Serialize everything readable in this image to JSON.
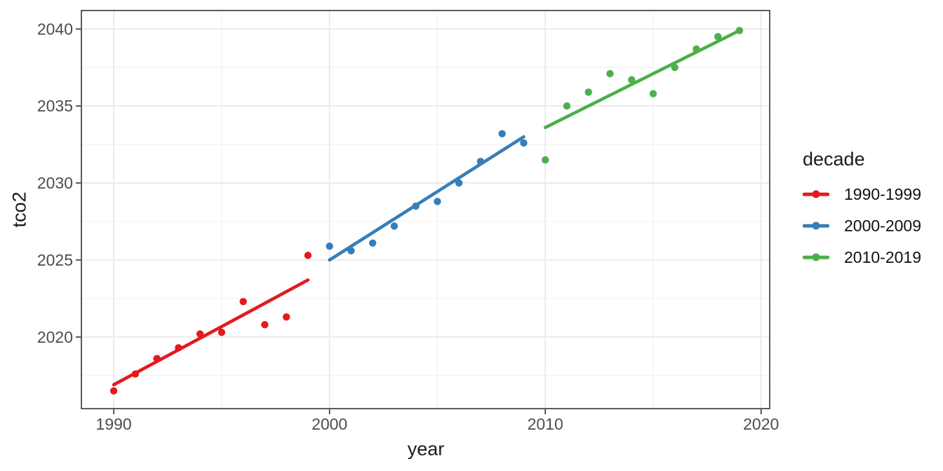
{
  "chart_data": {
    "type": "scatter",
    "xlabel": "year",
    "ylabel": "tco2",
    "legend_title": "decade",
    "legend_position": "right",
    "grid": true,
    "x_range": [
      1988.5,
      2020.4
    ],
    "y_range": [
      2015.35,
      2041.2
    ],
    "x_ticks_major": [
      1990,
      2000,
      2010,
      2020
    ],
    "x_ticks_minor": [
      1995,
      2005,
      2015
    ],
    "y_ticks_major": [
      2020,
      2025,
      2030,
      2035,
      2040
    ],
    "y_ticks_minor": [
      2017.5,
      2022.5,
      2027.5,
      2032.5,
      2037.5
    ],
    "theme": {
      "panel_background": "#ffffff",
      "panel_border": "#333333",
      "grid_major": "#e8e8e8",
      "grid_minor": "#f3f3f3",
      "tick_color": "#333333",
      "axis_text_color": "#4d4d4d",
      "title_color": "#1a1a1a"
    },
    "series": [
      {
        "name": "1990-1999",
        "color": "#E41A1C",
        "x": [
          1990,
          1991,
          1992,
          1993,
          1994,
          1995,
          1996,
          1997,
          1998,
          1999
        ],
        "y": [
          2016.5,
          2017.6,
          2018.6,
          2019.3,
          2020.2,
          2020.3,
          2022.3,
          2020.8,
          2021.3,
          2025.3
        ],
        "trend_line": {
          "x1": 1990,
          "y1": 2016.9,
          "x2": 1999,
          "y2": 2023.7
        }
      },
      {
        "name": "2000-2009",
        "color": "#377EB8",
        "x": [
          2000,
          2001,
          2002,
          2003,
          2004,
          2005,
          2006,
          2007,
          2008,
          2009
        ],
        "y": [
          2025.9,
          2025.6,
          2026.1,
          2027.2,
          2028.5,
          2028.8,
          2030.0,
          2031.4,
          2033.2,
          2032.6
        ],
        "trend_line": {
          "x1": 2000,
          "y1": 2025.0,
          "x2": 2009,
          "y2": 2033.0
        }
      },
      {
        "name": "2010-2019",
        "color": "#4DAF4A",
        "x": [
          2010,
          2011,
          2012,
          2013,
          2014,
          2015,
          2016,
          2017,
          2018,
          2019
        ],
        "y": [
          2031.5,
          2035.0,
          2035.9,
          2037.1,
          2036.7,
          2035.8,
          2037.5,
          2038.7,
          2039.5,
          2039.9
        ],
        "trend_line": {
          "x1": 2010,
          "y1": 2033.6,
          "x2": 2019,
          "y2": 2039.9
        }
      }
    ]
  }
}
